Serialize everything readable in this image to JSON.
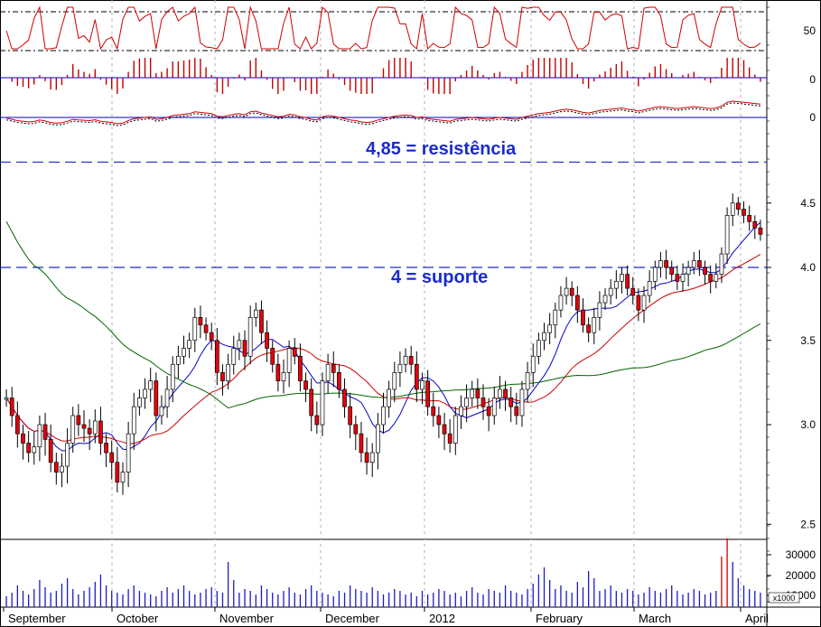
{
  "chart_data": {
    "type": "candlestick",
    "months": [
      "September",
      "October",
      "November",
      "December",
      "2012",
      "February",
      "March",
      "April"
    ],
    "price_axis": {
      "ticks": [
        "2.5",
        "3.0",
        "3.5",
        "4.0",
        "4.5"
      ],
      "log_scale": true
    },
    "rsi_panel": {
      "ticks": [
        "50"
      ],
      "upper": 70,
      "lower": 30
    },
    "histogram_panel": {
      "ticks": [
        "0"
      ]
    },
    "macd_panel": {
      "ticks": [
        "0"
      ]
    },
    "volume_axis": {
      "ticks": [
        "30000",
        "20000",
        "10000"
      ],
      "unit": "x1000"
    },
    "annotations": [
      {
        "text": "4,85 = resistência",
        "level": 4.85,
        "color": "#1a2ccf"
      },
      {
        "text": "4 = suporte",
        "level": 4.0,
        "color": "#1a2ccf"
      }
    ],
    "moving_averages": [
      {
        "color": "#0000cc",
        "period": "short"
      },
      {
        "color": "#cc0000",
        "period": "medium"
      },
      {
        "color": "#006600",
        "period": "long"
      }
    ],
    "candle_colors": {
      "up": "#ffffff",
      "down": "#e8000b",
      "outline": "#000000"
    },
    "close_prices": [
      3.15,
      3.05,
      2.95,
      2.9,
      2.85,
      2.88,
      3.0,
      2.92,
      2.8,
      2.75,
      2.78,
      2.9,
      3.05,
      3.0,
      2.98,
      2.95,
      3.02,
      2.9,
      2.85,
      2.8,
      2.7,
      2.75,
      2.95,
      3.1,
      3.15,
      3.2,
      3.25,
      3.05,
      3.1,
      3.2,
      3.35,
      3.4,
      3.45,
      3.5,
      3.65,
      3.6,
      3.55,
      3.5,
      3.3,
      3.25,
      3.35,
      3.45,
      3.5,
      3.4,
      3.65,
      3.7,
      3.55,
      3.45,
      3.35,
      3.25,
      3.3,
      3.45,
      3.4,
      3.25,
      3.2,
      3.05,
      3.0,
      3.25,
      3.35,
      3.3,
      3.2,
      3.1,
      3.0,
      2.95,
      2.85,
      2.8,
      2.85,
      3.0,
      3.1,
      3.2,
      3.3,
      3.35,
      3.4,
      3.35,
      3.2,
      3.25,
      3.1,
      3.05,
      3.0,
      2.95,
      2.9,
      3.05,
      3.1,
      3.15,
      3.2,
      3.15,
      3.1,
      3.05,
      3.15,
      3.2,
      3.15,
      3.1,
      3.05,
      3.2,
      3.3,
      3.4,
      3.5,
      3.55,
      3.6,
      3.7,
      3.8,
      3.85,
      3.8,
      3.7,
      3.6,
      3.55,
      3.65,
      3.75,
      3.8,
      3.85,
      3.9,
      3.95,
      3.85,
      3.8,
      3.7,
      3.8,
      3.9,
      4.0,
      4.05,
      4.0,
      3.95,
      3.9,
      3.95,
      4.0,
      4.05,
      4.0,
      3.95,
      3.9,
      3.95,
      4.1,
      4.4,
      4.5,
      4.45,
      4.4,
      4.35,
      4.3,
      4.25
    ],
    "volume": [
      6000,
      8000,
      12000,
      9000,
      7000,
      10000,
      15000,
      11000,
      8000,
      9000,
      13000,
      16000,
      10000,
      7000,
      9000,
      11000,
      14000,
      18000,
      12000,
      9000,
      8000,
      7000,
      10000,
      12000,
      9000,
      8000,
      7000,
      6000,
      9000,
      11000,
      8000,
      10000,
      12000,
      9000,
      7000,
      8000,
      10000,
      11000,
      9000,
      8000,
      25000,
      15000,
      8000,
      10000,
      9000,
      7000,
      12000,
      10000,
      8000,
      7000,
      9000,
      11000,
      8000,
      7000,
      10000,
      12000,
      9000,
      8000,
      7000,
      6000,
      9000,
      8000,
      12000,
      10000,
      9000,
      8000,
      11000,
      9000,
      7000,
      8000,
      10000,
      9000,
      7000,
      8000,
      6000,
      9000,
      7000,
      8000,
      10000,
      9000,
      7000,
      8000,
      6000,
      9000,
      11000,
      8000,
      7000,
      10000,
      9000,
      8000,
      12000,
      9000,
      8000,
      7000,
      10000,
      13000,
      18000,
      22000,
      15000,
      10000,
      12000,
      9000,
      8000,
      14000,
      11000,
      20000,
      16000,
      9000,
      10000,
      12000,
      9000,
      8000,
      10000,
      9000,
      7000,
      8000,
      11000,
      9000,
      8000,
      10000,
      12000,
      9000,
      7000,
      8000,
      10000,
      9000,
      7000,
      8000,
      9000,
      28000,
      38000,
      25000,
      16000,
      12000,
      10000,
      9000,
      8000
    ]
  }
}
